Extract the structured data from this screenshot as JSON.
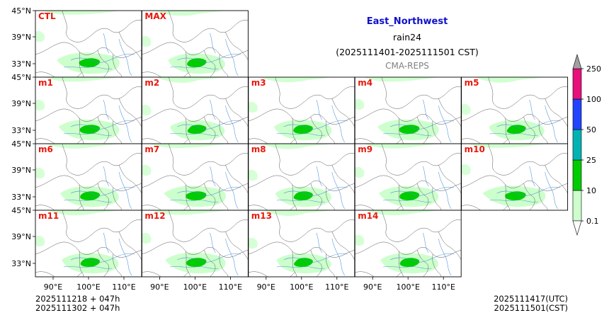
{
  "title": {
    "region": "East_Northwest",
    "variable": "rain24",
    "period": "(2025111401-2025111501 CST)",
    "source": "CMA-REPS"
  },
  "panels": [
    {
      "id": "CTL",
      "label": "CTL",
      "row": 0,
      "col": 0
    },
    {
      "id": "MAX",
      "label": "MAX",
      "row": 0,
      "col": 1
    },
    {
      "id": "m1",
      "label": "m1",
      "row": 1,
      "col": 0
    },
    {
      "id": "m2",
      "label": "m2",
      "row": 1,
      "col": 1
    },
    {
      "id": "m3",
      "label": "m3",
      "row": 1,
      "col": 2
    },
    {
      "id": "m4",
      "label": "m4",
      "row": 1,
      "col": 3
    },
    {
      "id": "m5",
      "label": "m5",
      "row": 1,
      "col": 4
    },
    {
      "id": "m6",
      "label": "m6",
      "row": 2,
      "col": 0
    },
    {
      "id": "m7",
      "label": "m7",
      "row": 2,
      "col": 1
    },
    {
      "id": "m8",
      "label": "m8",
      "row": 2,
      "col": 2
    },
    {
      "id": "m9",
      "label": "m9",
      "row": 2,
      "col": 3
    },
    {
      "id": "m10",
      "label": "m10",
      "row": 2,
      "col": 4
    },
    {
      "id": "m11",
      "label": "m11",
      "row": 3,
      "col": 0
    },
    {
      "id": "m12",
      "label": "m12",
      "row": 3,
      "col": 1
    },
    {
      "id": "m13",
      "label": "m13",
      "row": 3,
      "col": 2
    },
    {
      "id": "m14",
      "label": "m14",
      "row": 3,
      "col": 3
    }
  ],
  "axes": {
    "lat_top_label": "45°N",
    "lat_labels": [
      "39°N",
      "33°N"
    ],
    "lon_labels": [
      "90°E",
      "100°E",
      "110°E"
    ]
  },
  "colorbar": {
    "levels": [
      "0.1",
      "10",
      "25",
      "50",
      "100",
      "250"
    ],
    "colors": [
      "#ccffcc",
      "#00cc00",
      "#00b3b3",
      "#2244ff",
      "#e8107a"
    ],
    "over_color": "#a0a0a0",
    "under_color": "#ffffff"
  },
  "footer": {
    "init_utc": "2025111218  +  047h",
    "init_cst": "2025111302  +  047h",
    "valid_utc": "2025111417(UTC)",
    "valid_cst": "2025111501(CST)"
  }
}
